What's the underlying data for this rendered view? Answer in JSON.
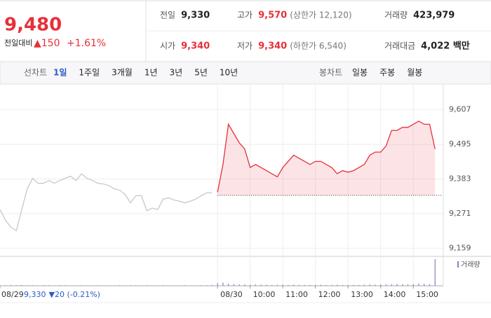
{
  "header": {
    "price": "9,480",
    "change_label": "전일대비",
    "change": "▲150",
    "change_pct": "+1.61%",
    "stats": [
      {
        "label": "전일",
        "value": "9,330"
      },
      {
        "label": "고가",
        "value": "9,570",
        "note": "(상한가 12,120)"
      },
      {
        "label": "거래량",
        "value": "423,979"
      },
      {
        "label": "시가",
        "value": "9,340"
      },
      {
        "label": "저가",
        "value": "9,340",
        "note": "(하한가 6,540)"
      },
      {
        "label": "거래대금",
        "value": "4,022 백만"
      }
    ]
  },
  "tabs": {
    "line_label": "선차트",
    "line": [
      "1일",
      "1주일",
      "3개월",
      "1년",
      "3년",
      "5년",
      "10년"
    ],
    "candle_label": "봉차트",
    "candle": [
      "일봉",
      "주봉",
      "월봉"
    ]
  },
  "chart_data": {
    "type": "line",
    "xlim": [
      0,
      81
    ],
    "xticks": [
      {
        "value": 0,
        "label": "08/29"
      },
      {
        "value": 40,
        "label": "08/30"
      },
      {
        "value": 46,
        "label": "10:00"
      },
      {
        "value": 52,
        "label": "11:00"
      },
      {
        "value": 58,
        "label": "12:00"
      },
      {
        "value": 64,
        "label": "13:00"
      },
      {
        "value": 70,
        "label": "14:00"
      },
      {
        "value": 76,
        "label": "15:00"
      }
    ],
    "ylim": [
      9135,
      9690
    ],
    "yticks": [
      {
        "value": 9607,
        "label": "9,607"
      },
      {
        "value": 9495,
        "label": "9,495"
      },
      {
        "value": 9383,
        "label": "9,383"
      },
      {
        "value": 9271,
        "label": "9,271"
      },
      {
        "value": 9159,
        "label": "9,159"
      }
    ],
    "grid": true,
    "reference": {
      "value": 9330,
      "label": "9,330",
      "change": "▼20 (-0.21%)"
    },
    "series": [
      {
        "color": "#c8c8c8",
        "values": [
          9284,
          9250,
          9227,
          9216,
          9284,
          9351,
          9385,
          9369,
          9369,
          9378,
          9369,
          9378,
          9385,
          9392,
          9378,
          9400,
          9385,
          9378,
          9369,
          9367,
          9362,
          9351,
          9347,
          9333,
          9306,
          9329,
          9329,
          9280,
          9289,
          9284,
          9318,
          9322,
          9315,
          9311,
          9306,
          9311,
          9318,
          9329,
          9338,
          9338,
          null,
          null,
          null,
          null,
          null,
          null,
          null,
          null,
          null,
          null,
          null,
          null,
          null,
          null,
          null,
          null,
          null,
          null,
          null,
          null,
          null,
          null,
          null,
          null,
          null,
          null,
          null,
          null,
          null,
          null,
          null,
          null,
          null,
          null,
          null,
          null,
          null,
          null,
          null,
          null,
          null
        ]
      },
      {
        "color": "#e8303a",
        "values": [
          null,
          null,
          null,
          null,
          null,
          null,
          null,
          null,
          null,
          null,
          null,
          null,
          null,
          null,
          null,
          null,
          null,
          null,
          null,
          null,
          null,
          null,
          null,
          null,
          null,
          null,
          null,
          null,
          null,
          null,
          null,
          null,
          null,
          null,
          null,
          null,
          null,
          null,
          null,
          null,
          9340,
          9430,
          9560,
          9530,
          9500,
          9480,
          9420,
          9430,
          9420,
          9410,
          9400,
          9390,
          9420,
          9440,
          9460,
          9450,
          9440,
          9430,
          9440,
          9440,
          9430,
          9420,
          9400,
          9410,
          9405,
          9410,
          9420,
          9430,
          9460,
          9470,
          9470,
          9490,
          9540,
          9540,
          9550,
          9550,
          9560,
          9570,
          9560,
          9560,
          9480
        ]
      }
    ],
    "volume_label": "거래량",
    "volume_color": "#8a7fc0",
    "vlim": [
      0,
      100
    ],
    "volume": [
      2,
      2,
      3,
      2,
      3,
      2,
      2,
      1,
      2,
      2,
      1,
      2,
      2,
      1,
      1,
      2,
      1,
      1,
      2,
      1,
      1,
      1,
      2,
      1,
      2,
      1,
      1,
      2,
      1,
      1,
      2,
      1,
      1,
      1,
      2,
      1,
      1,
      2,
      2,
      3,
      10,
      12,
      8,
      6,
      5,
      5,
      4,
      5,
      4,
      4,
      3,
      4,
      4,
      3,
      4,
      3,
      3,
      3,
      3,
      4,
      3,
      3,
      4,
      3,
      3,
      3,
      3,
      4,
      5,
      4,
      5,
      5,
      6,
      7,
      6,
      5,
      6,
      8,
      7,
      6,
      100
    ]
  }
}
